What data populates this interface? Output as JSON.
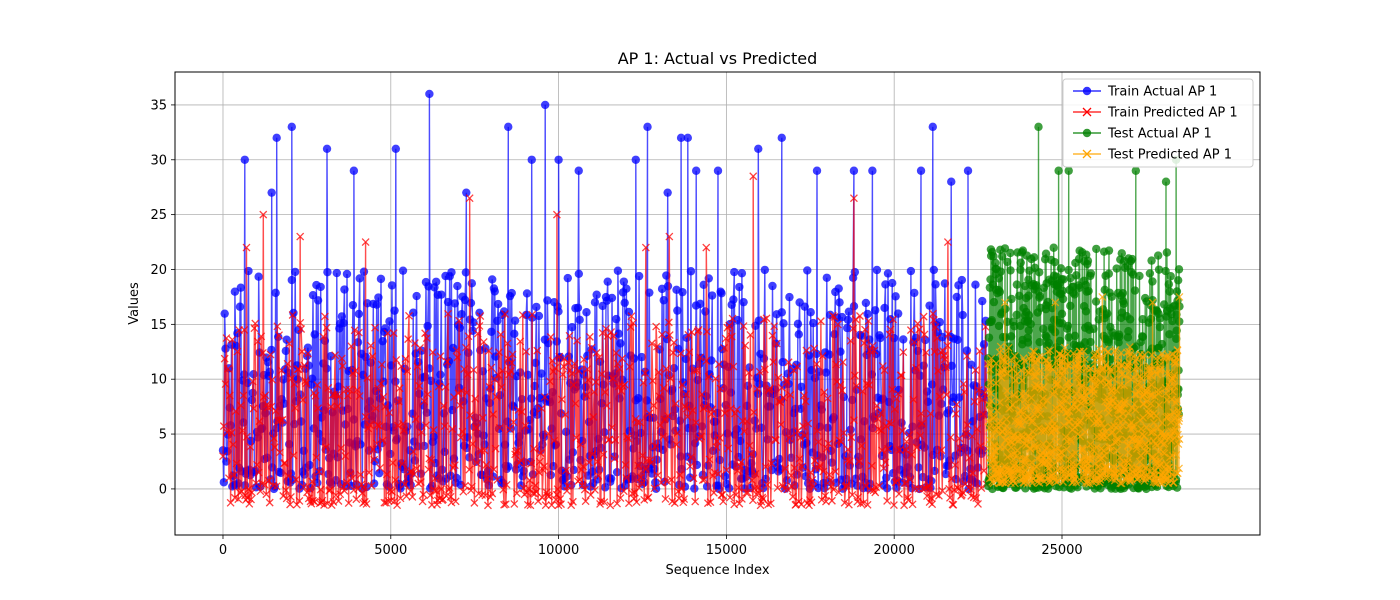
{
  "chart_data": {
    "type": "line",
    "title": "AP 1: Actual vs Predicted",
    "xlabel": "Sequence Index",
    "ylabel": "Values",
    "xlim": [
      -1430,
      30900
    ],
    "ylim": [
      -4.2,
      38.0
    ],
    "x_ticks": [
      0,
      5000,
      10000,
      15000,
      20000,
      25000
    ],
    "x_tick_labels": [
      "0",
      "5000",
      "10000",
      "15000",
      "20000",
      "25000"
    ],
    "y_ticks": [
      0,
      5,
      10,
      15,
      20,
      25,
      30,
      35
    ],
    "y_tick_labels": [
      "0",
      "5",
      "10",
      "15",
      "20",
      "25",
      "30",
      "35"
    ],
    "grid": true,
    "legend_position": "top-right",
    "series": [
      {
        "name": "Train Actual AP 1",
        "color": "#0000ff",
        "marker": "circle",
        "x_range": [
          0,
          22750
        ],
        "typical_range": [
          0,
          20
        ],
        "peaks": [
          [
            650,
            30
          ],
          [
            1450,
            27
          ],
          [
            1600,
            32
          ],
          [
            2050,
            33
          ],
          [
            3100,
            31
          ],
          [
            3900,
            29
          ],
          [
            5150,
            31
          ],
          [
            6150,
            36
          ],
          [
            7250,
            27
          ],
          [
            8500,
            33
          ],
          [
            9200,
            30
          ],
          [
            9600,
            35
          ],
          [
            10000,
            30
          ],
          [
            10600,
            29
          ],
          [
            12300,
            30
          ],
          [
            12650,
            33
          ],
          [
            13250,
            27
          ],
          [
            13650,
            32
          ],
          [
            13850,
            32
          ],
          [
            14100,
            29
          ],
          [
            14750,
            29
          ],
          [
            15950,
            31
          ],
          [
            16650,
            32
          ],
          [
            17700,
            29
          ],
          [
            18800,
            29
          ],
          [
            19350,
            29
          ],
          [
            20800,
            29
          ],
          [
            21150,
            33
          ],
          [
            21700,
            28
          ],
          [
            22200,
            29
          ]
        ]
      },
      {
        "name": "Train Predicted AP 1",
        "color": "#ff0000",
        "marker": "x",
        "x_range": [
          0,
          22750
        ],
        "typical_range": [
          -1.5,
          16
        ],
        "peaks": [
          [
            700,
            22
          ],
          [
            1200,
            25
          ],
          [
            2300,
            23
          ],
          [
            4250,
            22.5
          ],
          [
            7350,
            26.5
          ],
          [
            9950,
            25
          ],
          [
            12600,
            22
          ],
          [
            13300,
            23
          ],
          [
            14400,
            22
          ],
          [
            15800,
            28.5
          ],
          [
            18800,
            26.5
          ],
          [
            21600,
            22.5
          ]
        ]
      },
      {
        "name": "Test Actual AP 1",
        "color": "#008000",
        "marker": "circle",
        "x_range": [
          22800,
          28500
        ],
        "typical_range": [
          0,
          22
        ],
        "peaks": [
          [
            24300,
            33
          ],
          [
            24900,
            29
          ],
          [
            25200,
            29
          ],
          [
            27200,
            29
          ],
          [
            28100,
            28
          ],
          [
            28400,
            30
          ]
        ]
      },
      {
        "name": "Test Predicted AP 1",
        "color": "#ffa500",
        "marker": "x",
        "x_range": [
          22800,
          28500
        ],
        "typical_range": [
          0.5,
          13
        ],
        "peaks": [
          [
            23300,
            17
          ],
          [
            24800,
            17
          ],
          [
            26200,
            17.5
          ],
          [
            27700,
            17
          ],
          [
            28500,
            17.5
          ]
        ]
      }
    ]
  }
}
